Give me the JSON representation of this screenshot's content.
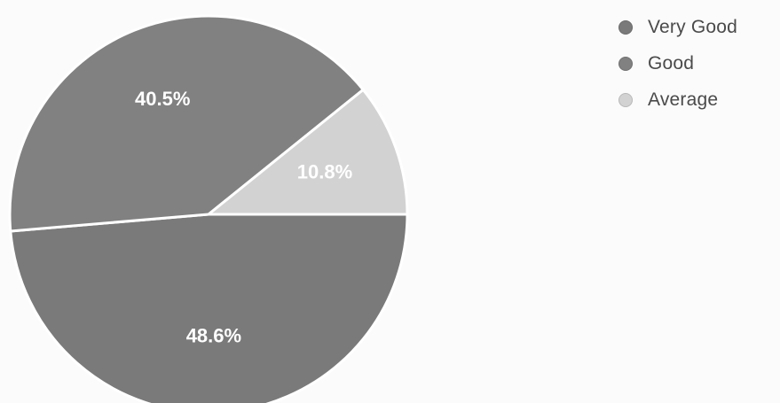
{
  "chart_data": {
    "type": "pie",
    "categories": [
      "Very Good",
      "Good",
      "Average"
    ],
    "values": [
      48.6,
      40.5,
      10.8
    ],
    "data_labels": [
      "48.6%",
      "40.5%",
      "10.8%"
    ],
    "colors": [
      "#7a7a7a",
      "#818181",
      "#d2d2d2"
    ],
    "legend_position": "top-right"
  }
}
